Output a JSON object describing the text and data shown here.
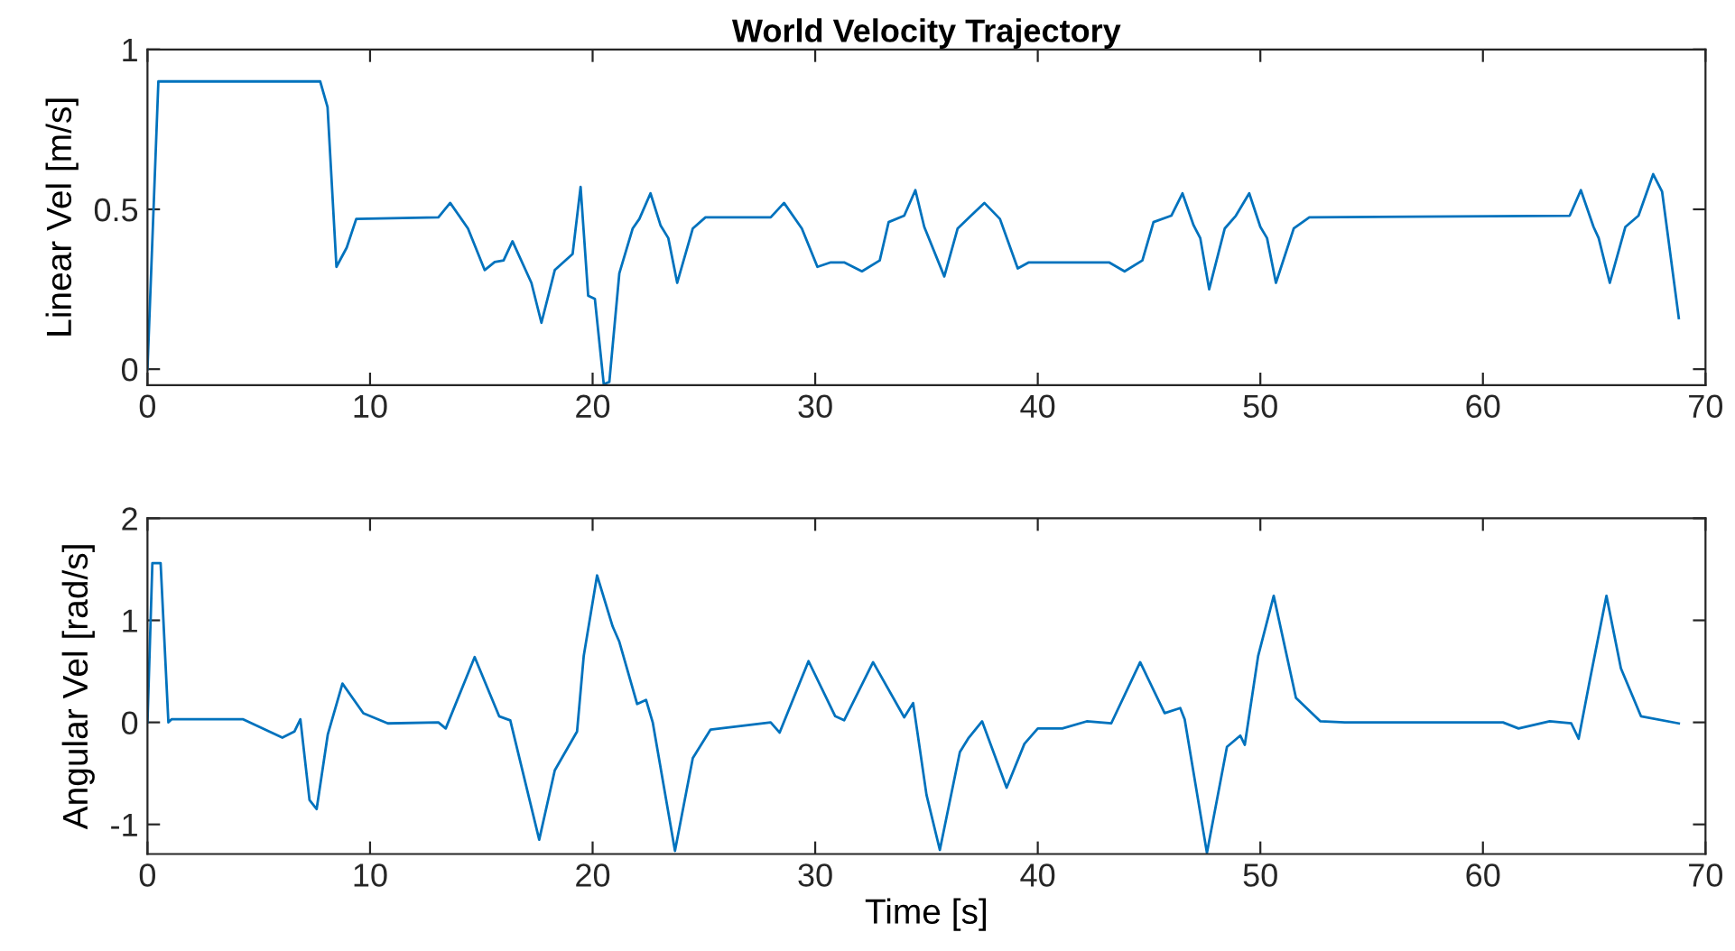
{
  "chart_data": [
    {
      "type": "line",
      "title": "World Velocity Trajectory",
      "ylabel": "Linear Vel [m/s]",
      "xlim": [
        0,
        70
      ],
      "xticks": [
        0,
        10,
        20,
        30,
        40,
        50,
        60,
        70
      ],
      "ylim": [
        -0.05,
        1
      ],
      "yticks": [
        0,
        0.5,
        1
      ],
      "series": [
        {
          "color": "#0072bd",
          "x": [
            0,
            0.49,
            7.76,
            8.09,
            8.49,
            8.95,
            9.38,
            13.07,
            13.6,
            14.4,
            15.15,
            15.6,
            16.0,
            16.4,
            17.25,
            17.7,
            18.3,
            19.1,
            19.46,
            19.8,
            20.1,
            20.5,
            20.75,
            21.2,
            21.8,
            22.1,
            22.6,
            23.05,
            23.4,
            23.8,
            24.5,
            25.07,
            28.0,
            28.6,
            29.4,
            30.1,
            30.7,
            31.3,
            32.1,
            32.9,
            33.3,
            34.0,
            34.5,
            34.9,
            35.8,
            36.4,
            37.0,
            37.6,
            38.3,
            39.1,
            39.6,
            43.2,
            43.9,
            44.7,
            45.2,
            46.0,
            46.5,
            47.0,
            47.3,
            47.7,
            48.4,
            48.9,
            49.5,
            50.0,
            50.3,
            50.7,
            51.5,
            52.2,
            63.9,
            64.4,
            64.97,
            65.2,
            65.7,
            66.4,
            66.99,
            67.65,
            68.05,
            68.8
          ],
          "values": [
            0,
            0.9,
            0.9,
            0.82,
            0.32,
            0.38,
            0.47,
            0.475,
            0.52,
            0.44,
            0.31,
            0.335,
            0.34,
            0.4,
            0.27,
            0.145,
            0.31,
            0.36,
            0.57,
            0.23,
            0.22,
            -0.047,
            -0.04,
            0.3,
            0.44,
            0.47,
            0.55,
            0.45,
            0.41,
            0.27,
            0.44,
            0.475,
            0.475,
            0.52,
            0.44,
            0.32,
            0.334,
            0.334,
            0.306,
            0.34,
            0.46,
            0.48,
            0.56,
            0.445,
            0.29,
            0.44,
            0.48,
            0.52,
            0.47,
            0.315,
            0.334,
            0.334,
            0.306,
            0.34,
            0.46,
            0.48,
            0.55,
            0.45,
            0.41,
            0.25,
            0.44,
            0.48,
            0.55,
            0.445,
            0.41,
            0.27,
            0.44,
            0.475,
            0.48,
            0.56,
            0.445,
            0.41,
            0.27,
            0.445,
            0.48,
            0.61,
            0.555,
            0.16
          ]
        }
      ]
    },
    {
      "type": "line",
      "xlabel": "Time [s]",
      "ylabel": "Angular Vel [rad/s]",
      "xlim": [
        0,
        70
      ],
      "xticks": [
        0,
        10,
        20,
        30,
        40,
        50,
        60,
        70
      ],
      "ylim": [
        -1.29,
        2
      ],
      "yticks": [
        -1,
        0,
        1,
        2
      ],
      "series": [
        {
          "color": "#0072bd",
          "x": [
            0,
            0.22,
            0.59,
            0.94,
            1.08,
            4.3,
            6.06,
            6.6,
            6.87,
            7.28,
            7.6,
            8.1,
            8.76,
            9.7,
            10.8,
            13.07,
            13.4,
            14.7,
            15.8,
            16.3,
            17.6,
            18.3,
            19.3,
            19.6,
            20.2,
            20.9,
            21.2,
            22.0,
            22.4,
            22.7,
            23.7,
            24.5,
            25.3,
            28.0,
            28.4,
            29.7,
            30.9,
            31.3,
            32.6,
            34.0,
            34.4,
            35.0,
            35.6,
            36.5,
            36.9,
            37.5,
            38.6,
            39.4,
            40.0,
            41.1,
            42.2,
            43.3,
            44.6,
            45.7,
            46.4,
            46.6,
            47.6,
            48.5,
            49.1,
            49.3,
            49.9,
            50.6,
            51.6,
            52.7,
            53.8,
            60.9,
            61.6,
            63.0,
            63.97,
            64.3,
            64.8,
            65.55,
            66.2,
            67.1,
            68.8
          ],
          "values": [
            0,
            1.56,
            1.56,
            0,
            0.03,
            0.03,
            -0.15,
            -0.09,
            0.03,
            -0.76,
            -0.85,
            -0.12,
            0.38,
            0.09,
            -0.01,
            0,
            -0.06,
            0.64,
            0.06,
            0.02,
            -1.15,
            -0.47,
            -0.09,
            0.65,
            1.44,
            0.94,
            0.79,
            0.18,
            0.22,
            0,
            -1.26,
            -0.35,
            -0.07,
            0,
            -0.1,
            0.6,
            0.06,
            0.02,
            0.59,
            0.05,
            0.19,
            -0.71,
            -1.25,
            -0.29,
            -0.15,
            0.01,
            -0.64,
            -0.21,
            -0.06,
            -0.06,
            0.01,
            -0.01,
            0.59,
            0.09,
            0.14,
            0.03,
            -1.28,
            -0.24,
            -0.13,
            -0.22,
            0.65,
            1.24,
            0.24,
            0.01,
            0,
            0,
            -0.06,
            0.01,
            -0.01,
            -0.16,
            0.41,
            1.24,
            0.53,
            0.06,
            -0.01
          ]
        }
      ]
    }
  ]
}
